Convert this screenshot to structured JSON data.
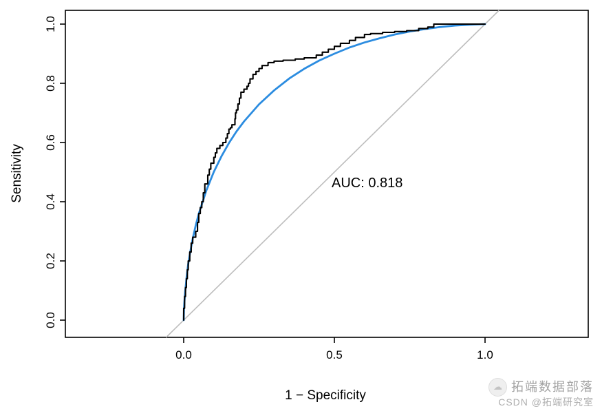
{
  "chart_data": {
    "type": "line",
    "title": "",
    "xlabel": "1 − Specificity",
    "ylabel": "Sensitivity",
    "xlim": [
      0,
      1
    ],
    "ylim": [
      0,
      1
    ],
    "grid": false,
    "legend": null,
    "x_ticks": [
      0.0,
      0.5,
      1.0
    ],
    "x_tick_labels": [
      "0.0",
      "0.5",
      "1.0"
    ],
    "y_ticks": [
      0.0,
      0.2,
      0.4,
      0.6,
      0.8,
      1.0
    ],
    "y_tick_labels": [
      "0.0",
      "0.2",
      "0.4",
      "0.6",
      "0.8",
      "1.0"
    ],
    "auc": 0.818,
    "annotation": {
      "text": "AUC: 0.818",
      "x": 0.49,
      "y": 0.465
    },
    "series": [
      {
        "name": "chance-diagonal",
        "type": "abline",
        "slope": 1,
        "intercept": 0,
        "color": "#bdbdbd",
        "width": 1.6
      },
      {
        "name": "smooth-roc",
        "type": "line",
        "color": "#2b8ce0",
        "width": 2.8,
        "points": [
          [
            0,
            0
          ],
          [
            0.001,
            0.035
          ],
          [
            0.0025,
            0.064
          ],
          [
            0.005,
            0.098
          ],
          [
            0.0075,
            0.122
          ],
          [
            0.01,
            0.149
          ],
          [
            0.015,
            0.19
          ],
          [
            0.02,
            0.221
          ],
          [
            0.03,
            0.275
          ],
          [
            0.04,
            0.32
          ],
          [
            0.05,
            0.359
          ],
          [
            0.075,
            0.438
          ],
          [
            0.1,
            0.501
          ],
          [
            0.125,
            0.553
          ],
          [
            0.15,
            0.598
          ],
          [
            0.175,
            0.637
          ],
          [
            0.2,
            0.671
          ],
          [
            0.25,
            0.729
          ],
          [
            0.3,
            0.776
          ],
          [
            0.35,
            0.816
          ],
          [
            0.4,
            0.849
          ],
          [
            0.45,
            0.877
          ],
          [
            0.5,
            0.9
          ],
          [
            0.55,
            0.921
          ],
          [
            0.6,
            0.938
          ],
          [
            0.65,
            0.952
          ],
          [
            0.7,
            0.965
          ],
          [
            0.75,
            0.975
          ],
          [
            0.8,
            0.983
          ],
          [
            0.85,
            0.99
          ],
          [
            0.9,
            0.995
          ],
          [
            0.95,
            0.998
          ],
          [
            1,
            1
          ]
        ]
      },
      {
        "name": "empirical-roc",
        "type": "step",
        "color": "#000000",
        "width": 2.1,
        "points": [
          [
            0,
            0
          ],
          [
            0.003,
            0.04
          ],
          [
            0.006,
            0.08
          ],
          [
            0.009,
            0.11
          ],
          [
            0.012,
            0.14
          ],
          [
            0.015,
            0.17
          ],
          [
            0.02,
            0.2
          ],
          [
            0.025,
            0.23
          ],
          [
            0.03,
            0.26
          ],
          [
            0.04,
            0.28
          ],
          [
            0.046,
            0.3
          ],
          [
            0.05,
            0.33
          ],
          [
            0.055,
            0.36
          ],
          [
            0.06,
            0.38
          ],
          [
            0.065,
            0.4
          ],
          [
            0.07,
            0.43
          ],
          [
            0.08,
            0.46
          ],
          [
            0.085,
            0.49
          ],
          [
            0.09,
            0.51
          ],
          [
            0.1,
            0.53
          ],
          [
            0.105,
            0.55
          ],
          [
            0.11,
            0.565
          ],
          [
            0.12,
            0.58
          ],
          [
            0.13,
            0.59
          ],
          [
            0.14,
            0.6
          ],
          [
            0.145,
            0.615
          ],
          [
            0.15,
            0.63
          ],
          [
            0.155,
            0.645
          ],
          [
            0.16,
            0.65
          ],
          [
            0.17,
            0.66
          ],
          [
            0.172,
            0.68
          ],
          [
            0.175,
            0.7
          ],
          [
            0.18,
            0.71
          ],
          [
            0.185,
            0.73
          ],
          [
            0.19,
            0.75
          ],
          [
            0.2,
            0.77
          ],
          [
            0.21,
            0.78
          ],
          [
            0.215,
            0.79
          ],
          [
            0.22,
            0.8
          ],
          [
            0.23,
            0.815
          ],
          [
            0.24,
            0.83
          ],
          [
            0.25,
            0.84
          ],
          [
            0.26,
            0.85
          ],
          [
            0.28,
            0.86
          ],
          [
            0.3,
            0.87
          ],
          [
            0.33,
            0.875
          ],
          [
            0.37,
            0.878
          ],
          [
            0.4,
            0.882
          ],
          [
            0.44,
            0.886
          ],
          [
            0.46,
            0.895
          ],
          [
            0.48,
            0.905
          ],
          [
            0.5,
            0.915
          ],
          [
            0.52,
            0.925
          ],
          [
            0.55,
            0.935
          ],
          [
            0.57,
            0.945
          ],
          [
            0.6,
            0.955
          ],
          [
            0.62,
            0.965
          ],
          [
            0.66,
            0.968
          ],
          [
            0.7,
            0.972
          ],
          [
            0.74,
            0.975
          ],
          [
            0.78,
            0.978
          ],
          [
            0.81,
            0.985
          ],
          [
            0.83,
            0.99
          ],
          [
            0.85,
            1.0
          ],
          [
            1.0,
            1.0
          ]
        ]
      }
    ]
  },
  "watermark": {
    "brand": "拓端数据部落",
    "credit": "CSDN @拓端研究室",
    "logo_icon": "cloud-logo",
    "logo_glyph": "☁"
  }
}
